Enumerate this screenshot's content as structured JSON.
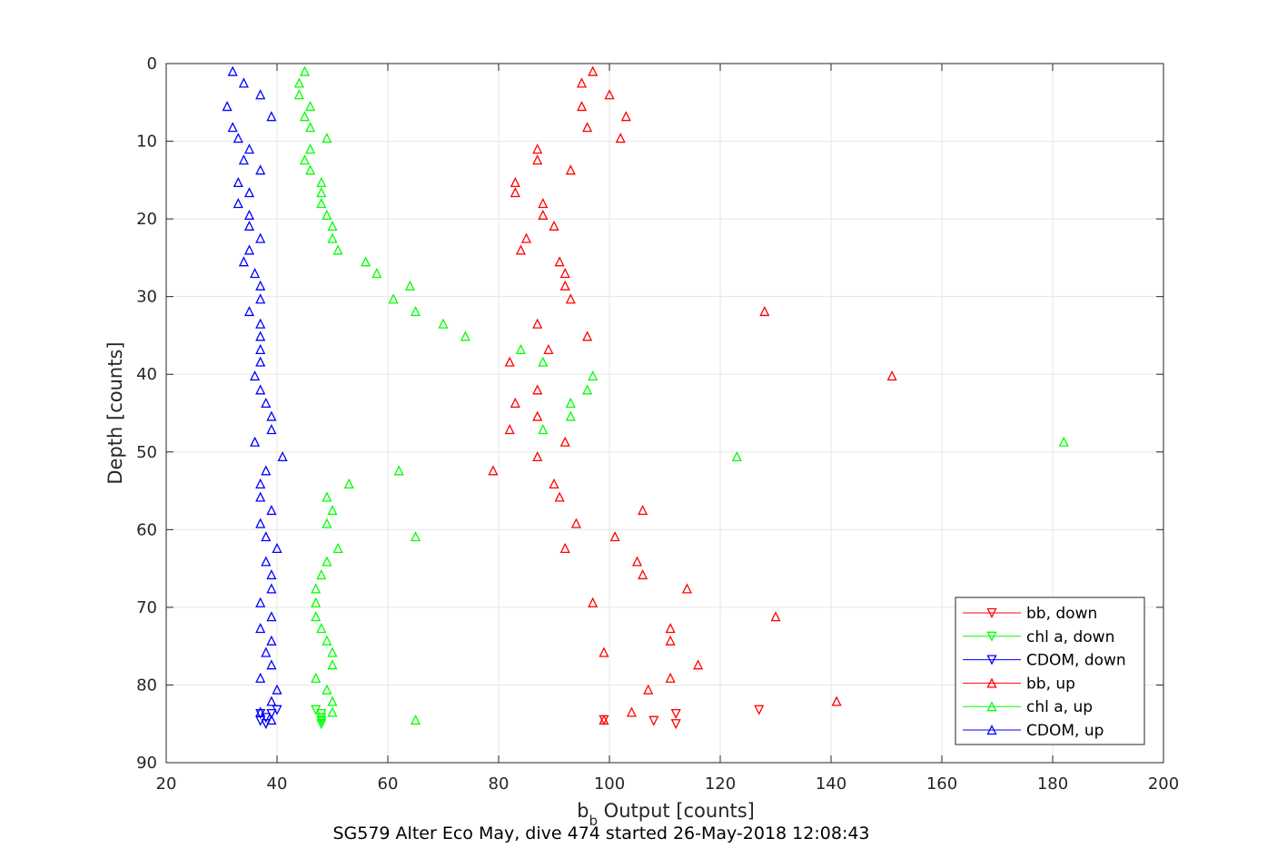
{
  "chart_data": {
    "type": "scatter",
    "title": "",
    "caption": "SG579 Alter Eco May, dive 474 started 26-May-2018 12:08:43",
    "xlabel_main": "b",
    "xlabel_sub": "b",
    "xlabel_rest": " Output [counts]",
    "ylabel": "Depth [counts]",
    "xlim": [
      20,
      200
    ],
    "ylim": [
      0,
      90
    ],
    "y_reversed": true,
    "grid": true,
    "xticks": [
      20,
      40,
      60,
      80,
      100,
      120,
      140,
      160,
      180,
      200
    ],
    "yticks": [
      0,
      10,
      20,
      30,
      40,
      50,
      60,
      70,
      80,
      90
    ],
    "legend_position": "bottom-right",
    "series": [
      {
        "name": "bb, down",
        "color": "#ff0000",
        "marker": "triangle-down",
        "points": [
          [
            127,
            83.2
          ],
          [
            112,
            83.7
          ],
          [
            108,
            84.6
          ],
          [
            112,
            85.0
          ],
          [
            99,
            84.5
          ]
        ]
      },
      {
        "name": "chl a, down",
        "color": "#00ff00",
        "marker": "triangle-down",
        "points": [
          [
            47,
            83.2
          ],
          [
            48,
            83.7
          ],
          [
            48,
            84.2
          ],
          [
            48,
            84.6
          ],
          [
            48,
            85.0
          ]
        ]
      },
      {
        "name": "CDOM, down",
        "color": "#0000ff",
        "marker": "triangle-down",
        "points": [
          [
            40,
            83.2
          ],
          [
            39,
            83.7
          ],
          [
            37,
            83.7
          ],
          [
            38,
            84.2
          ],
          [
            37,
            84.6
          ],
          [
            38,
            85.0
          ]
        ]
      },
      {
        "name": "bb, up",
        "color": "#ff0000",
        "marker": "triangle-up",
        "points": [
          [
            97,
            1
          ],
          [
            95,
            2.5
          ],
          [
            100,
            4
          ],
          [
            95,
            5.5
          ],
          [
            103,
            6.8
          ],
          [
            96,
            8.2
          ],
          [
            102,
            9.6
          ],
          [
            87,
            11
          ],
          [
            87,
            12.4
          ],
          [
            93,
            13.7
          ],
          [
            83,
            15.3
          ],
          [
            83,
            16.6
          ],
          [
            88,
            18
          ],
          [
            88,
            19.5
          ],
          [
            90,
            20.9
          ],
          [
            85,
            22.5
          ],
          [
            84,
            24
          ],
          [
            91,
            25.5
          ],
          [
            92,
            27
          ],
          [
            92,
            28.6
          ],
          [
            93,
            30.3
          ],
          [
            128,
            31.9
          ],
          [
            87,
            33.5
          ],
          [
            96,
            35.1
          ],
          [
            89,
            36.8
          ],
          [
            82,
            38.4
          ],
          [
            151,
            40.2
          ],
          [
            87,
            42
          ],
          [
            83,
            43.7
          ],
          [
            87,
            45.4
          ],
          [
            82,
            47.1
          ],
          [
            92,
            48.7
          ],
          [
            87,
            50.6
          ],
          [
            79,
            52.4
          ],
          [
            90,
            54.1
          ],
          [
            91,
            55.8
          ],
          [
            106,
            57.5
          ],
          [
            94,
            59.2
          ],
          [
            101,
            60.9
          ],
          [
            92,
            62.4
          ],
          [
            105,
            64.1
          ],
          [
            106,
            65.8
          ],
          [
            114,
            67.6
          ],
          [
            97,
            69.4
          ],
          [
            130,
            71.2
          ],
          [
            111,
            72.7
          ],
          [
            111,
            74.3
          ],
          [
            99,
            75.8
          ],
          [
            116,
            77.4
          ],
          [
            111,
            79.1
          ],
          [
            107,
            80.6
          ],
          [
            141,
            82.1
          ],
          [
            104,
            83.5
          ],
          [
            99,
            84.5
          ]
        ]
      },
      {
        "name": "chl a, up",
        "color": "#00ff00",
        "marker": "triangle-up",
        "points": [
          [
            45,
            1
          ],
          [
            44,
            2.5
          ],
          [
            44,
            4
          ],
          [
            46,
            5.5
          ],
          [
            45,
            6.8
          ],
          [
            46,
            8.2
          ],
          [
            49,
            9.6
          ],
          [
            46,
            11
          ],
          [
            45,
            12.4
          ],
          [
            46,
            13.7
          ],
          [
            48,
            15.3
          ],
          [
            48,
            16.6
          ],
          [
            48,
            18
          ],
          [
            49,
            19.5
          ],
          [
            50,
            20.9
          ],
          [
            50,
            22.5
          ],
          [
            51,
            24
          ],
          [
            56,
            25.5
          ],
          [
            58,
            27
          ],
          [
            64,
            28.6
          ],
          [
            61,
            30.3
          ],
          [
            65,
            31.9
          ],
          [
            70,
            33.5
          ],
          [
            74,
            35.1
          ],
          [
            84,
            36.8
          ],
          [
            88,
            38.4
          ],
          [
            97,
            40.2
          ],
          [
            96,
            42
          ],
          [
            93,
            43.7
          ],
          [
            93,
            45.4
          ],
          [
            88,
            47.1
          ],
          [
            182,
            48.7
          ],
          [
            123,
            50.6
          ],
          [
            62,
            52.4
          ],
          [
            53,
            54.1
          ],
          [
            49,
            55.8
          ],
          [
            50,
            57.5
          ],
          [
            49,
            59.2
          ],
          [
            65,
            60.9
          ],
          [
            51,
            62.4
          ],
          [
            49,
            64.1
          ],
          [
            48,
            65.8
          ],
          [
            47,
            67.6
          ],
          [
            47,
            69.4
          ],
          [
            47,
            71.2
          ],
          [
            48,
            72.7
          ],
          [
            49,
            74.3
          ],
          [
            50,
            75.8
          ],
          [
            50,
            77.4
          ],
          [
            47,
            79.1
          ],
          [
            49,
            80.6
          ],
          [
            50,
            82.1
          ],
          [
            50,
            83.5
          ],
          [
            65,
            84.5
          ]
        ]
      },
      {
        "name": "CDOM, up",
        "color": "#0000ff",
        "marker": "triangle-up",
        "points": [
          [
            32,
            1
          ],
          [
            34,
            2.5
          ],
          [
            37,
            4
          ],
          [
            31,
            5.5
          ],
          [
            39,
            6.8
          ],
          [
            32,
            8.2
          ],
          [
            33,
            9.6
          ],
          [
            35,
            11
          ],
          [
            34,
            12.4
          ],
          [
            37,
            13.7
          ],
          [
            33,
            15.3
          ],
          [
            35,
            16.6
          ],
          [
            33,
            18
          ],
          [
            35,
            19.5
          ],
          [
            35,
            20.9
          ],
          [
            37,
            22.5
          ],
          [
            35,
            24
          ],
          [
            34,
            25.5
          ],
          [
            36,
            27
          ],
          [
            37,
            28.6
          ],
          [
            37,
            30.3
          ],
          [
            35,
            31.9
          ],
          [
            37,
            33.5
          ],
          [
            37,
            35.1
          ],
          [
            37,
            36.8
          ],
          [
            37,
            38.4
          ],
          [
            36,
            40.2
          ],
          [
            37,
            42
          ],
          [
            38,
            43.7
          ],
          [
            39,
            45.4
          ],
          [
            39,
            47.1
          ],
          [
            36,
            48.7
          ],
          [
            41,
            50.6
          ],
          [
            38,
            52.4
          ],
          [
            37,
            54.1
          ],
          [
            37,
            55.8
          ],
          [
            39,
            57.5
          ],
          [
            37,
            59.2
          ],
          [
            38,
            60.9
          ],
          [
            40,
            62.4
          ],
          [
            38,
            64.1
          ],
          [
            39,
            65.8
          ],
          [
            39,
            67.6
          ],
          [
            37,
            69.4
          ],
          [
            39,
            71.2
          ],
          [
            37,
            72.7
          ],
          [
            39,
            74.3
          ],
          [
            38,
            75.8
          ],
          [
            39,
            77.4
          ],
          [
            37,
            79.1
          ],
          [
            40,
            80.6
          ],
          [
            39,
            82.1
          ],
          [
            37,
            83.5
          ],
          [
            39,
            84.5
          ]
        ]
      }
    ]
  }
}
